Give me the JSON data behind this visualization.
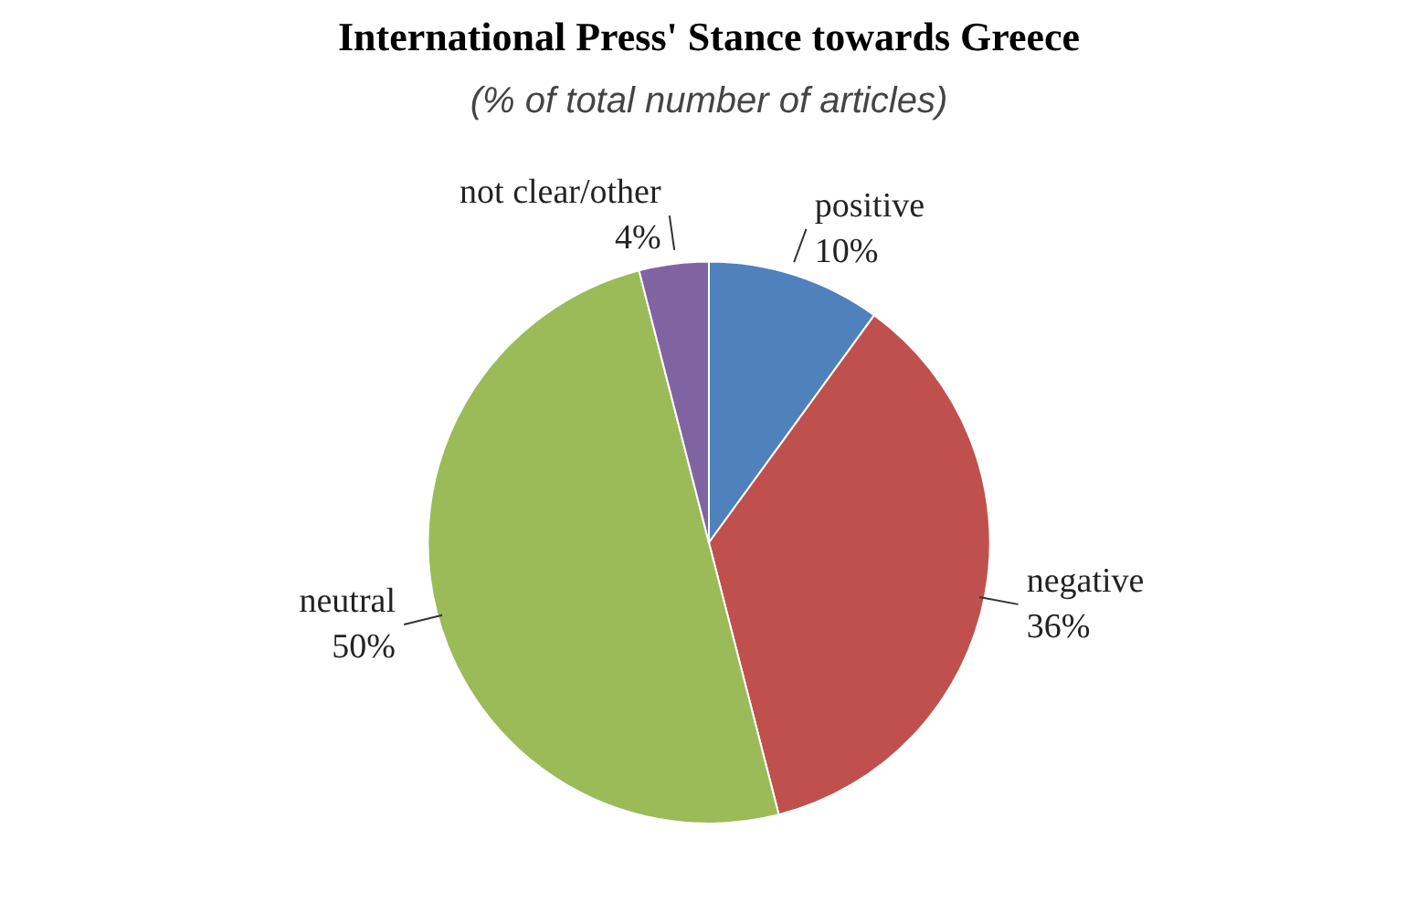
{
  "chart_data": {
    "type": "pie",
    "title": "International Press' Stance towards Greece",
    "subtitle": "(% of total number of articles)",
    "categories": [
      "positive",
      "negative",
      "neutral",
      "not clear/other"
    ],
    "values": [
      10,
      36,
      50,
      4
    ],
    "value_labels": [
      "10%",
      "36%",
      "50%",
      "4%"
    ],
    "colors": [
      "#4f81bd",
      "#c0504d",
      "#9bbb59",
      "#8064a2"
    ]
  }
}
